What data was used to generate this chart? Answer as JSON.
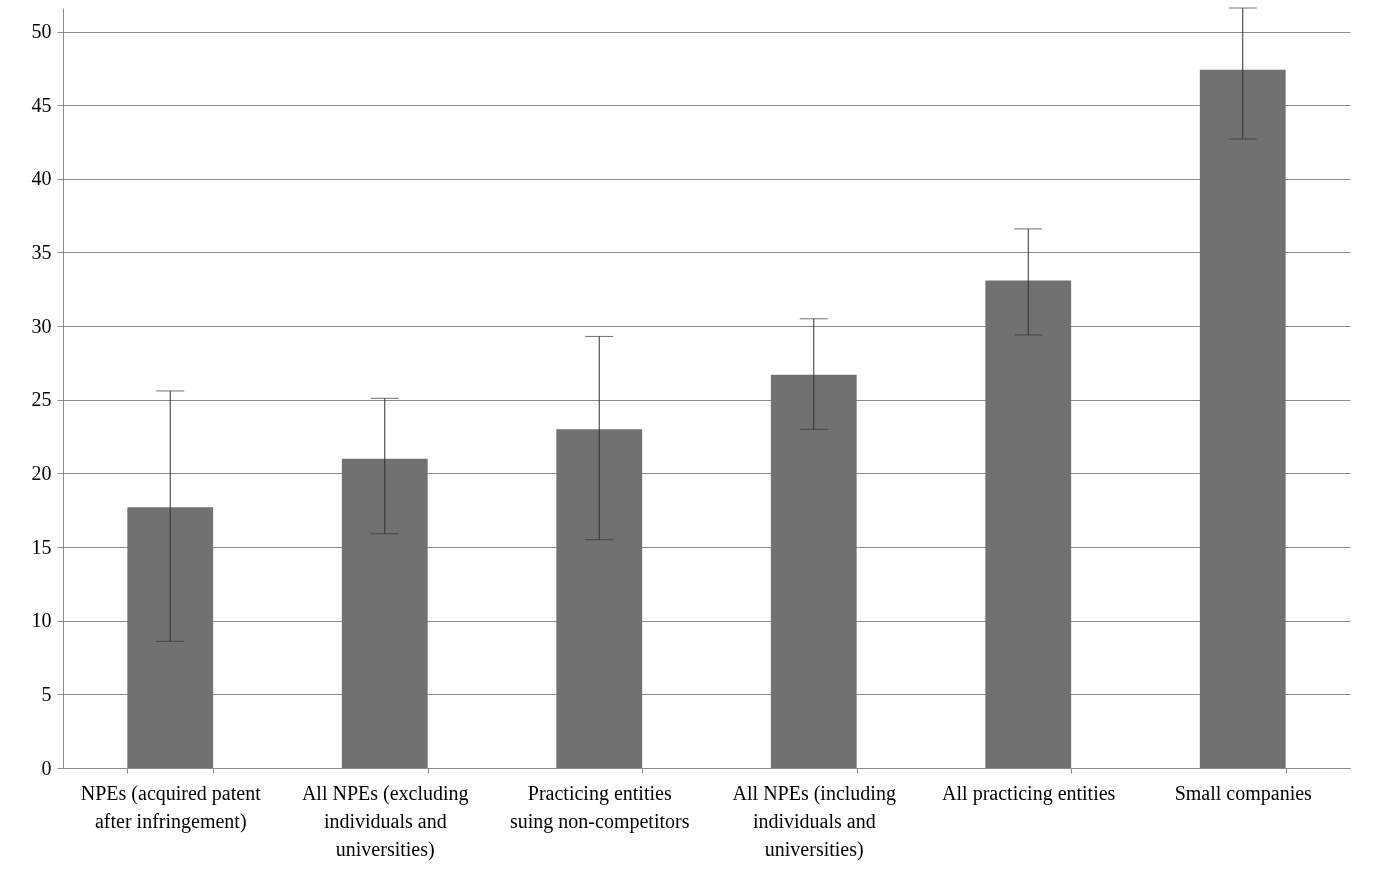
{
  "chart_data": {
    "type": "bar",
    "categories": [
      "NPEs (acquired patent after infringement)",
      "All NPEs (excluding individuals and universities)",
      "Practicing entities suing non-competitors",
      "All NPEs (including individuals and universities)",
      "All practicing entities",
      "Small companies"
    ],
    "values": [
      17.7,
      21.0,
      23.0,
      26.7,
      33.1,
      47.4
    ],
    "errors": [
      [
        8.6,
        25.6
      ],
      [
        15.9,
        25.1
      ],
      [
        15.5,
        29.3
      ],
      [
        23.0,
        30.5
      ],
      [
        29.4,
        36.6
      ],
      [
        42.7,
        51.6
      ]
    ],
    "color": "#717171",
    "ylim": [
      0,
      51.6
    ],
    "yticks": [
      0,
      5,
      10,
      15,
      20,
      25,
      30,
      35,
      40,
      45,
      50
    ],
    "grid": "y"
  }
}
